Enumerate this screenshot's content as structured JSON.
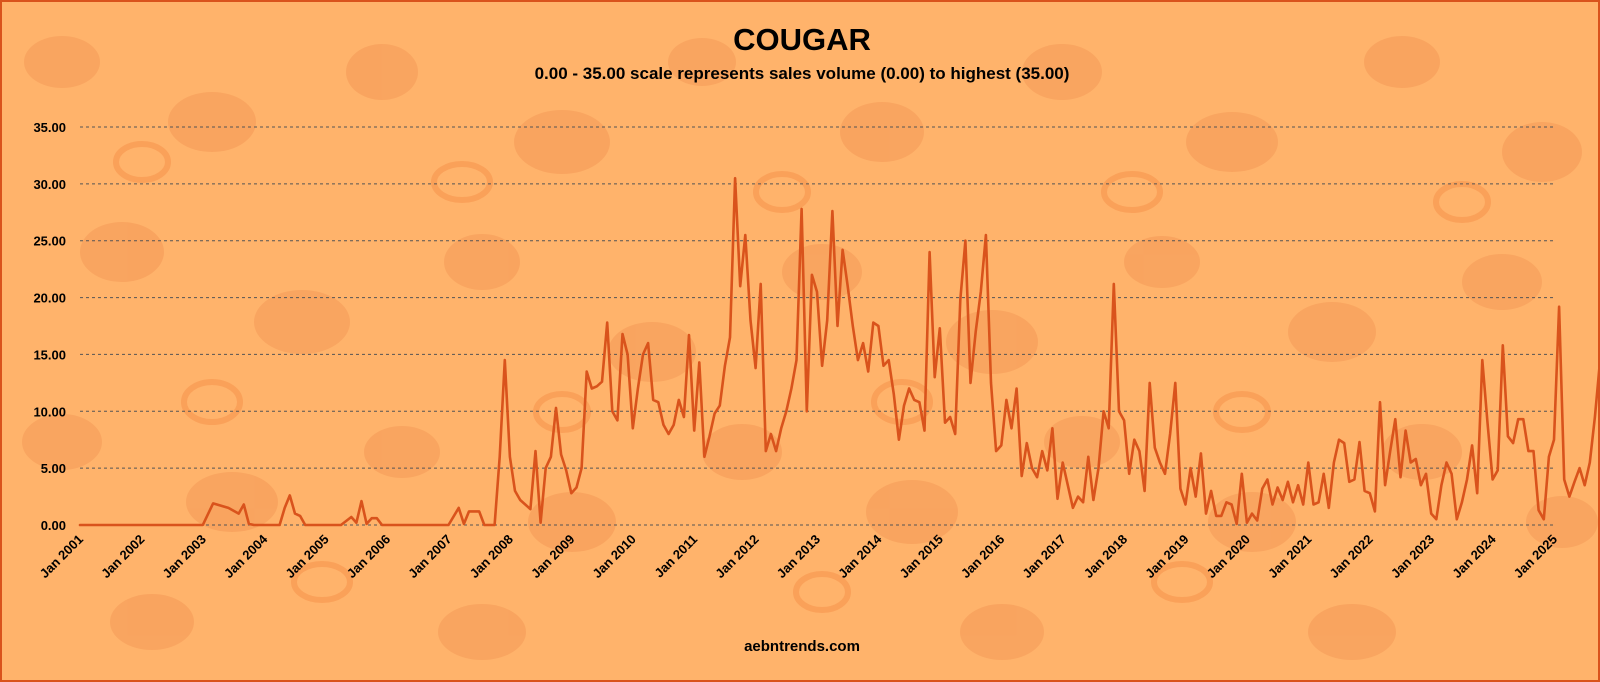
{
  "header": {
    "title": "COUGAR",
    "subtitle": "0.00 - 35.00 scale represents sales volume (0.00) to highest (35.00)"
  },
  "footer": {
    "site": "aebntrends.com"
  },
  "colors": {
    "line": "#d9531c",
    "grid": "#555555",
    "background": "#ffb36b",
    "spots": "#f79a52"
  },
  "chart_data": {
    "type": "line",
    "title": "COUGAR",
    "subtitle": "0.00 - 35.00 scale represents sales volume (0.00) to highest (35.00)",
    "xlabel": "",
    "ylabel": "",
    "ylim": [
      0,
      35
    ],
    "yticks": [
      "0.00",
      "5.00",
      "10.00",
      "15.00",
      "20.00",
      "25.00",
      "30.00",
      "35.00"
    ],
    "xticks": [
      "Jan 2001",
      "Jan 2002",
      "Jan 2003",
      "Jan 2004",
      "Jan 2005",
      "Jan 2006",
      "Jan 2007",
      "Jan 2008",
      "Jan 2009",
      "Jan 2010",
      "Jan 2011",
      "Jan 2012",
      "Jan 2013",
      "Jan 2014",
      "Jan 2015",
      "Jan 2016",
      "Jan 2017",
      "Jan 2018",
      "Jan 2019",
      "Jan 2020",
      "Jan 2021",
      "Jan 2022",
      "Jan 2023",
      "Jan 2024",
      "Jan 2025"
    ],
    "grid": "horizontal dashed",
    "legend": "none",
    "points": [
      [
        "2001-01",
        0
      ],
      [
        "2003-01",
        0
      ],
      [
        "2003-03",
        1.9
      ],
      [
        "2003-06",
        1.5
      ],
      [
        "2003-08",
        1.0
      ],
      [
        "2003-09",
        1.8
      ],
      [
        "2003-10",
        0.1
      ],
      [
        "2003-11",
        0
      ],
      [
        "2004-04",
        0
      ],
      [
        "2004-05",
        1.5
      ],
      [
        "2004-06",
        2.6
      ],
      [
        "2004-07",
        1.0
      ],
      [
        "2004-08",
        0.8
      ],
      [
        "2004-09",
        0
      ],
      [
        "2005-04",
        0
      ],
      [
        "2005-06",
        0.7
      ],
      [
        "2005-07",
        0.2
      ],
      [
        "2005-08",
        2.1
      ],
      [
        "2005-09",
        0.1
      ],
      [
        "2005-10",
        0.6
      ],
      [
        "2005-11",
        0.6
      ],
      [
        "2005-12",
        0
      ],
      [
        "2007-01",
        0
      ],
      [
        "2007-03",
        1.5
      ],
      [
        "2007-04",
        0.1
      ],
      [
        "2007-05",
        1.2
      ],
      [
        "2007-07",
        1.2
      ],
      [
        "2007-08",
        0
      ],
      [
        "2007-10",
        0
      ],
      [
        "2007-11",
        6.0
      ],
      [
        "2007-12",
        14.5
      ],
      [
        "2008-01",
        6.0
      ],
      [
        "2008-02",
        3.0
      ],
      [
        "2008-03",
        2.2
      ],
      [
        "2008-05",
        1.4
      ],
      [
        "2008-06",
        6.5
      ],
      [
        "2008-07",
        0.2
      ],
      [
        "2008-08",
        5.0
      ],
      [
        "2008-09",
        6.0
      ],
      [
        "2008-10",
        10.3
      ],
      [
        "2008-11",
        6.2
      ],
      [
        "2008-12",
        4.8
      ],
      [
        "2009-01",
        2.8
      ],
      [
        "2009-02",
        3.3
      ],
      [
        "2009-03",
        5.0
      ],
      [
        "2009-04",
        13.5
      ],
      [
        "2009-05",
        12.0
      ],
      [
        "2009-06",
        12.2
      ],
      [
        "2009-07",
        12.6
      ],
      [
        "2009-08",
        17.8
      ],
      [
        "2009-09",
        10.0
      ],
      [
        "2009-10",
        9.2
      ],
      [
        "2009-11",
        16.8
      ],
      [
        "2009-12",
        15.0
      ],
      [
        "2010-01",
        8.5
      ],
      [
        "2010-02",
        12.0
      ],
      [
        "2010-03",
        15.0
      ],
      [
        "2010-04",
        16.0
      ],
      [
        "2010-05",
        11.0
      ],
      [
        "2010-06",
        10.8
      ],
      [
        "2010-07",
        8.8
      ],
      [
        "2010-08",
        8.0
      ],
      [
        "2010-09",
        8.8
      ],
      [
        "2010-10",
        11.0
      ],
      [
        "2010-11",
        9.5
      ],
      [
        "2010-12",
        16.7
      ],
      [
        "2011-01",
        8.3
      ],
      [
        "2011-02",
        14.3
      ],
      [
        "2011-03",
        6.0
      ],
      [
        "2011-04",
        7.8
      ],
      [
        "2011-05",
        9.8
      ],
      [
        "2011-06",
        10.5
      ],
      [
        "2011-07",
        14.0
      ],
      [
        "2011-08",
        16.5
      ],
      [
        "2011-09",
        30.5
      ],
      [
        "2011-10",
        21.0
      ],
      [
        "2011-11",
        25.5
      ],
      [
        "2011-12",
        18.0
      ],
      [
        "2012-01",
        13.8
      ],
      [
        "2012-02",
        21.2
      ],
      [
        "2012-03",
        6.5
      ],
      [
        "2012-04",
        8.0
      ],
      [
        "2012-05",
        6.5
      ],
      [
        "2012-06",
        8.5
      ],
      [
        "2012-07",
        10.0
      ],
      [
        "2012-08",
        12.0
      ],
      [
        "2012-09",
        14.5
      ],
      [
        "2012-10",
        27.8
      ],
      [
        "2012-11",
        10.0
      ],
      [
        "2012-12",
        22.0
      ],
      [
        "2013-01",
        20.5
      ],
      [
        "2013-02",
        14.0
      ],
      [
        "2013-03",
        18.0
      ],
      [
        "2013-04",
        27.6
      ],
      [
        "2013-05",
        17.5
      ],
      [
        "2013-06",
        24.2
      ],
      [
        "2013-07",
        21.0
      ],
      [
        "2013-08",
        17.5
      ],
      [
        "2013-09",
        14.5
      ],
      [
        "2013-10",
        16.0
      ],
      [
        "2013-11",
        13.5
      ],
      [
        "2013-12",
        17.8
      ],
      [
        "2014-01",
        17.5
      ],
      [
        "2014-02",
        14.0
      ],
      [
        "2014-03",
        14.5
      ],
      [
        "2014-04",
        11.5
      ],
      [
        "2014-05",
        7.5
      ],
      [
        "2014-06",
        10.5
      ],
      [
        "2014-07",
        12.0
      ],
      [
        "2014-08",
        11.0
      ],
      [
        "2014-09",
        10.8
      ],
      [
        "2014-10",
        8.3
      ],
      [
        "2014-11",
        24.0
      ],
      [
        "2014-12",
        13.0
      ],
      [
        "2015-01",
        17.3
      ],
      [
        "2015-02",
        9.0
      ],
      [
        "2015-03",
        9.5
      ],
      [
        "2015-04",
        8.0
      ],
      [
        "2015-05",
        19.8
      ],
      [
        "2015-06",
        25.0
      ],
      [
        "2015-07",
        12.5
      ],
      [
        "2015-08",
        17.0
      ],
      [
        "2015-09",
        20.5
      ],
      [
        "2015-10",
        25.5
      ],
      [
        "2015-11",
        12.5
      ],
      [
        "2015-12",
        6.5
      ],
      [
        "2016-01",
        7.0
      ],
      [
        "2016-02",
        11.0
      ],
      [
        "2016-03",
        8.5
      ],
      [
        "2016-04",
        12.0
      ],
      [
        "2016-05",
        4.3
      ],
      [
        "2016-06",
        7.2
      ],
      [
        "2016-07",
        5.0
      ],
      [
        "2016-08",
        4.2
      ],
      [
        "2016-09",
        6.5
      ],
      [
        "2016-10",
        4.8
      ],
      [
        "2016-11",
        8.5
      ],
      [
        "2016-12",
        2.3
      ],
      [
        "2017-01",
        5.5
      ],
      [
        "2017-02",
        3.5
      ],
      [
        "2017-03",
        1.5
      ],
      [
        "2017-04",
        2.5
      ],
      [
        "2017-05",
        2.0
      ],
      [
        "2017-06",
        6.0
      ],
      [
        "2017-07",
        2.2
      ],
      [
        "2017-08",
        5.0
      ],
      [
        "2017-09",
        10.0
      ],
      [
        "2017-10",
        8.5
      ],
      [
        "2017-11",
        21.2
      ],
      [
        "2017-12",
        10.0
      ],
      [
        "2018-01",
        9.2
      ],
      [
        "2018-02",
        4.5
      ],
      [
        "2018-03",
        7.5
      ],
      [
        "2018-04",
        6.5
      ],
      [
        "2018-05",
        3.0
      ],
      [
        "2018-06",
        12.5
      ],
      [
        "2018-07",
        6.8
      ],
      [
        "2018-08",
        5.5
      ],
      [
        "2018-09",
        4.5
      ],
      [
        "2018-10",
        8.0
      ],
      [
        "2018-11",
        12.5
      ],
      [
        "2018-12",
        3.2
      ],
      [
        "2019-01",
        1.8
      ],
      [
        "2019-02",
        5.0
      ],
      [
        "2019-03",
        2.5
      ],
      [
        "2019-04",
        6.3
      ],
      [
        "2019-05",
        1.0
      ],
      [
        "2019-06",
        3.0
      ],
      [
        "2019-07",
        0.8
      ],
      [
        "2019-08",
        0.8
      ],
      [
        "2019-09",
        2.0
      ],
      [
        "2019-10",
        1.8
      ],
      [
        "2019-11",
        0.1
      ],
      [
        "2019-12",
        4.5
      ],
      [
        "2020-01",
        0.2
      ],
      [
        "2020-02",
        1.0
      ],
      [
        "2020-03",
        0.4
      ],
      [
        "2020-04",
        3.2
      ],
      [
        "2020-05",
        4.0
      ],
      [
        "2020-06",
        1.8
      ],
      [
        "2020-07",
        3.3
      ],
      [
        "2020-08",
        2.2
      ],
      [
        "2020-09",
        3.8
      ],
      [
        "2020-10",
        2.0
      ],
      [
        "2020-11",
        3.5
      ],
      [
        "2020-12",
        1.8
      ],
      [
        "2021-01",
        5.5
      ],
      [
        "2021-02",
        1.8
      ],
      [
        "2021-03",
        2.0
      ],
      [
        "2021-04",
        4.5
      ],
      [
        "2021-05",
        1.5
      ],
      [
        "2021-06",
        5.5
      ],
      [
        "2021-07",
        7.5
      ],
      [
        "2021-08",
        7.2
      ],
      [
        "2021-09",
        3.8
      ],
      [
        "2021-10",
        4.0
      ],
      [
        "2021-11",
        7.3
      ],
      [
        "2021-12",
        3.0
      ],
      [
        "2022-01",
        2.8
      ],
      [
        "2022-02",
        1.2
      ],
      [
        "2022-03",
        10.8
      ],
      [
        "2022-04",
        3.5
      ],
      [
        "2022-05",
        6.5
      ],
      [
        "2022-06",
        9.3
      ],
      [
        "2022-07",
        4.2
      ],
      [
        "2022-08",
        8.3
      ],
      [
        "2022-09",
        5.5
      ],
      [
        "2022-10",
        5.8
      ],
      [
        "2022-11",
        3.5
      ],
      [
        "2022-12",
        4.5
      ],
      [
        "2023-01",
        1.0
      ],
      [
        "2023-02",
        0.5
      ],
      [
        "2023-03",
        3.5
      ],
      [
        "2023-04",
        5.5
      ],
      [
        "2023-05",
        4.5
      ],
      [
        "2023-06",
        0.5
      ],
      [
        "2023-07",
        2.0
      ],
      [
        "2023-08",
        4.0
      ],
      [
        "2023-09",
        7.0
      ],
      [
        "2023-10",
        2.8
      ],
      [
        "2023-11",
        14.5
      ],
      [
        "2023-12",
        9.0
      ],
      [
        "2024-01",
        4.0
      ],
      [
        "2024-02",
        4.8
      ],
      [
        "2024-03",
        15.8
      ],
      [
        "2024-04",
        7.8
      ],
      [
        "2024-05",
        7.2
      ],
      [
        "2024-06",
        9.3
      ],
      [
        "2024-07",
        9.3
      ],
      [
        "2024-08",
        6.5
      ],
      [
        "2024-09",
        6.5
      ],
      [
        "2024-10",
        1.3
      ],
      [
        "2024-11",
        0.5
      ],
      [
        "2024-12",
        6.0
      ],
      [
        "2025-01",
        7.5
      ],
      [
        "2025-02",
        19.2
      ],
      [
        "2025-03",
        4.0
      ],
      [
        "2025-04",
        2.5
      ],
      [
        "2025-05",
        3.8
      ],
      [
        "2025-06",
        5.0
      ],
      [
        "2025-07",
        3.5
      ],
      [
        "2025-08",
        5.5
      ],
      [
        "2025-09",
        9.5
      ],
      [
        "2025-10",
        14.5
      ]
    ]
  }
}
